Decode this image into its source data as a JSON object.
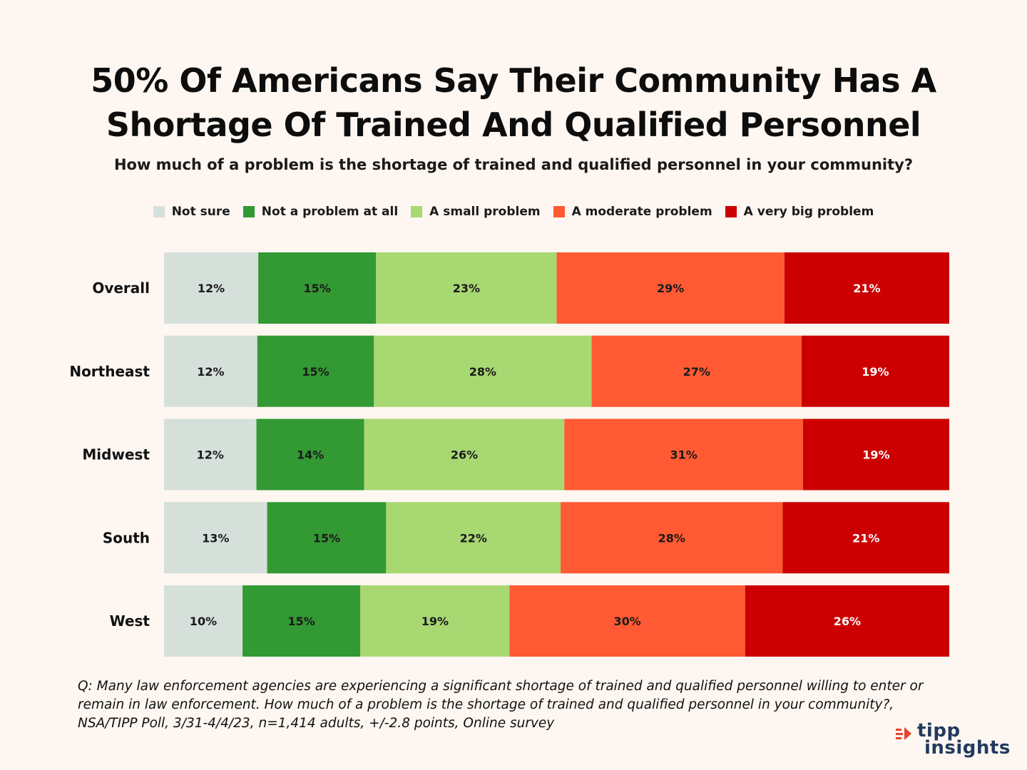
{
  "title_lines": [
    "50% Of Americans Say Their Community Has A",
    "Shortage Of Trained And Qualified Personnel"
  ],
  "subtitle": "How much of a problem is the shortage of trained and qualified personnel in your community?",
  "legend": [
    {
      "label": "Not sure",
      "color": "#d6e0db"
    },
    {
      "label": "Not a problem at all",
      "color": "#339933"
    },
    {
      "label": "A small problem",
      "color": "#a8d872"
    },
    {
      "label": "A moderate problem",
      "color": "#ff5a33"
    },
    {
      "label": "A very big problem",
      "color": "#cc0000"
    }
  ],
  "chart_data": {
    "type": "bar",
    "orientation": "horizontal",
    "stacked": true,
    "categories": [
      "Overall",
      "Northeast",
      "Midwest",
      "South",
      "West"
    ],
    "series": [
      {
        "name": "Not sure",
        "values": [
          12,
          12,
          12,
          13,
          10
        ]
      },
      {
        "name": "Not a problem at all",
        "values": [
          15,
          15,
          14,
          15,
          15
        ]
      },
      {
        "name": "A small problem",
        "values": [
          23,
          28,
          26,
          22,
          19
        ]
      },
      {
        "name": "A moderate problem",
        "values": [
          29,
          27,
          31,
          28,
          30
        ]
      },
      {
        "name": "A very big problem",
        "values": [
          21,
          19,
          19,
          21,
          26
        ]
      }
    ],
    "value_suffix": "%",
    "colors": [
      "#d6e0db",
      "#339933",
      "#a8d872",
      "#ff5a33",
      "#cc0000"
    ],
    "label_colors": [
      "#1a1a1a",
      "#1a1a1a",
      "#1a1a1a",
      "#1a1a1a",
      "#ffffff"
    ],
    "legend_position": "top",
    "grid": false
  },
  "footnote": "Q: Many law enforcement agencies are experiencing a significant shortage of trained and qualified personnel willing to enter or remain in law enforcement. How much of a problem is the shortage of trained and qualified personnel in your community?, NSA/TIPP Poll, 3/31-4/4/23, n=1,414 adults, +/-2.8 points, Online survey",
  "logo": {
    "line1": "tipp",
    "line2": "insights",
    "color": "#233a5e",
    "accent": "#e8432e"
  }
}
